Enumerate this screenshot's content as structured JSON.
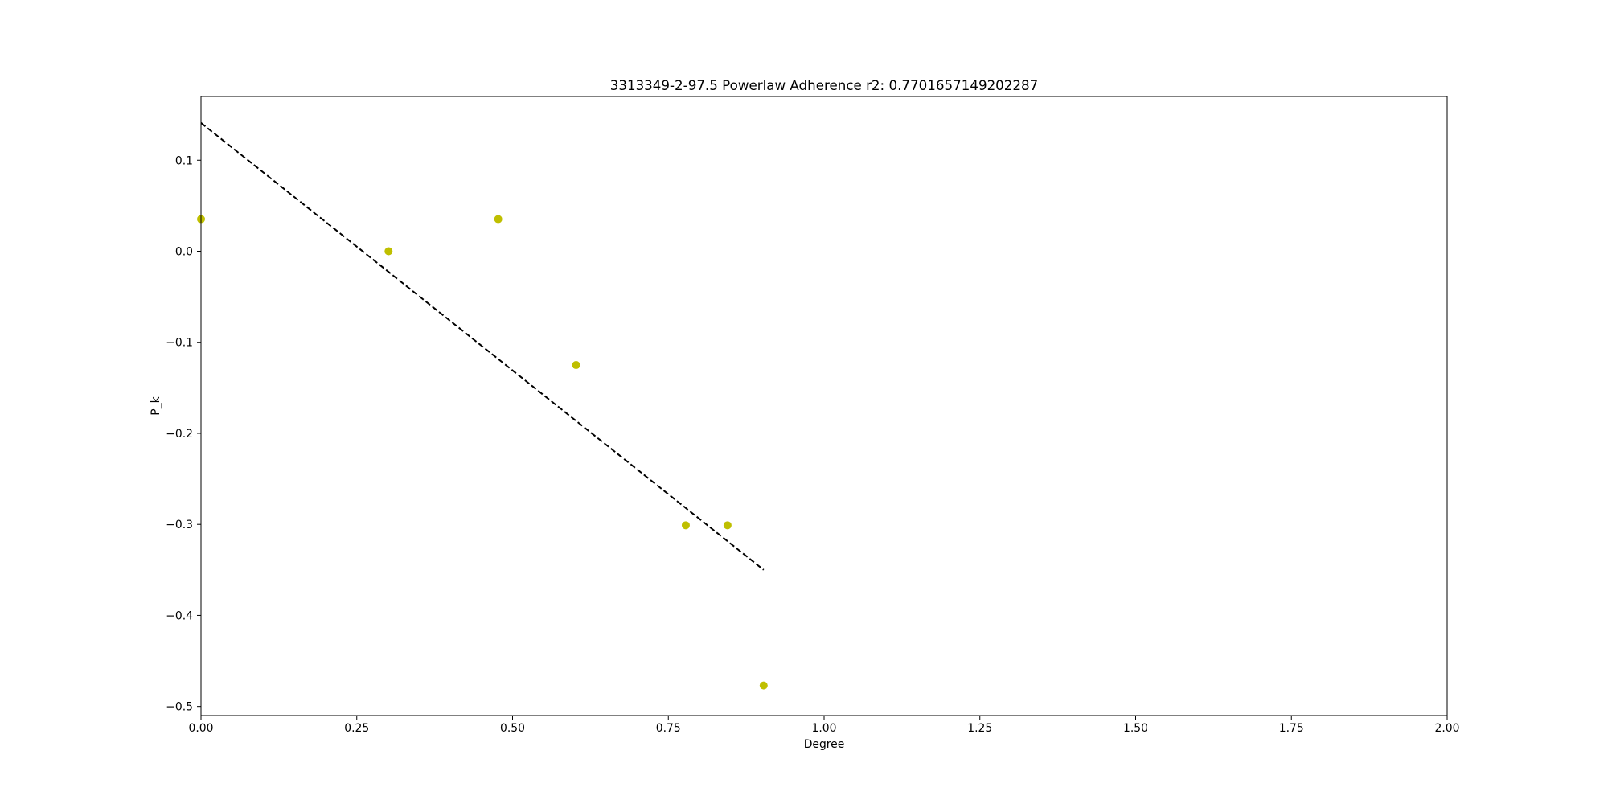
{
  "chart_data": {
    "type": "scatter",
    "title": "3313349-2-97.5 Powerlaw Adherence r2: 0.7701657149202287",
    "xlabel": "Degree",
    "ylabel": "P_k",
    "xlim": [
      0.0,
      2.0
    ],
    "ylim": [
      -0.51,
      0.17
    ],
    "x_ticks": [
      0.0,
      0.25,
      0.5,
      0.75,
      1.0,
      1.25,
      1.5,
      1.75,
      2.0
    ],
    "x_tick_labels": [
      "0.00",
      "0.25",
      "0.50",
      "0.75",
      "1.00",
      "1.25",
      "1.50",
      "1.75",
      "2.00"
    ],
    "y_ticks": [
      0.1,
      0.0,
      -0.1,
      -0.2,
      -0.3,
      -0.4,
      -0.5
    ],
    "y_tick_labels": [
      "0.1",
      "0.0",
      "−0.1",
      "−0.2",
      "−0.3",
      "−0.4",
      "−0.5"
    ],
    "grid": false,
    "series": [
      {
        "kind": "scatter",
        "color": "#bfbf00",
        "points": [
          {
            "x": 0.0,
            "y": 0.0353
          },
          {
            "x": 0.301,
            "y": 0.0
          },
          {
            "x": 0.477,
            "y": 0.0353
          },
          {
            "x": 0.602,
            "y": -0.125
          },
          {
            "x": 0.778,
            "y": -0.301
          },
          {
            "x": 0.845,
            "y": -0.301
          },
          {
            "x": 0.903,
            "y": -0.477
          }
        ]
      },
      {
        "kind": "line",
        "style": "dashed",
        "color": "#000000",
        "points": [
          {
            "x": 0.0,
            "y": 0.141
          },
          {
            "x": 0.903,
            "y": -0.35
          }
        ]
      }
    ]
  }
}
